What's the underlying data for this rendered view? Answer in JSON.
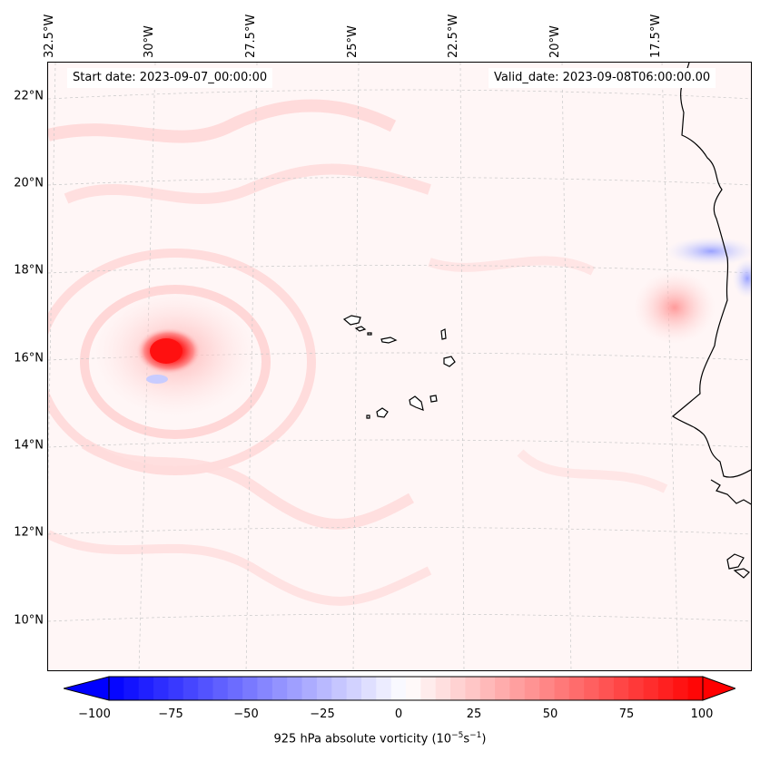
{
  "header": {
    "start_date": "Start date: 2023-09-07_00:00:00",
    "valid_date": "Valid_date: 2023-09-08T06:00:00.00"
  },
  "axes": {
    "lon_labels": [
      "32.5°W",
      "30°W",
      "27.5°W",
      "25°W",
      "22.5°W",
      "20°W",
      "17.5°W"
    ],
    "lat_labels": [
      "22°N",
      "20°N",
      "18°N",
      "16°N",
      "14°N",
      "12°N",
      "10°N"
    ]
  },
  "map": {
    "variable": "925 hPa absolute vorticity",
    "features": [
      "cape-verde-islands",
      "west-african-coastline",
      "vorticity-maximum-near-30W-16N"
    ]
  },
  "colorbar": {
    "ticks": [
      "−100",
      "−75",
      "−50",
      "−25",
      "0",
      "25",
      "50",
      "75",
      "100"
    ],
    "min": -100,
    "max": 100,
    "label_main": "925 hPa absolute vorticity (10",
    "label_exp1": "−5",
    "label_mid": "s",
    "label_exp2": "−1",
    "label_end": ")",
    "colors": {
      "negative": "#0000ff",
      "zero": "#ffffff",
      "positive": "#ff0000"
    }
  }
}
